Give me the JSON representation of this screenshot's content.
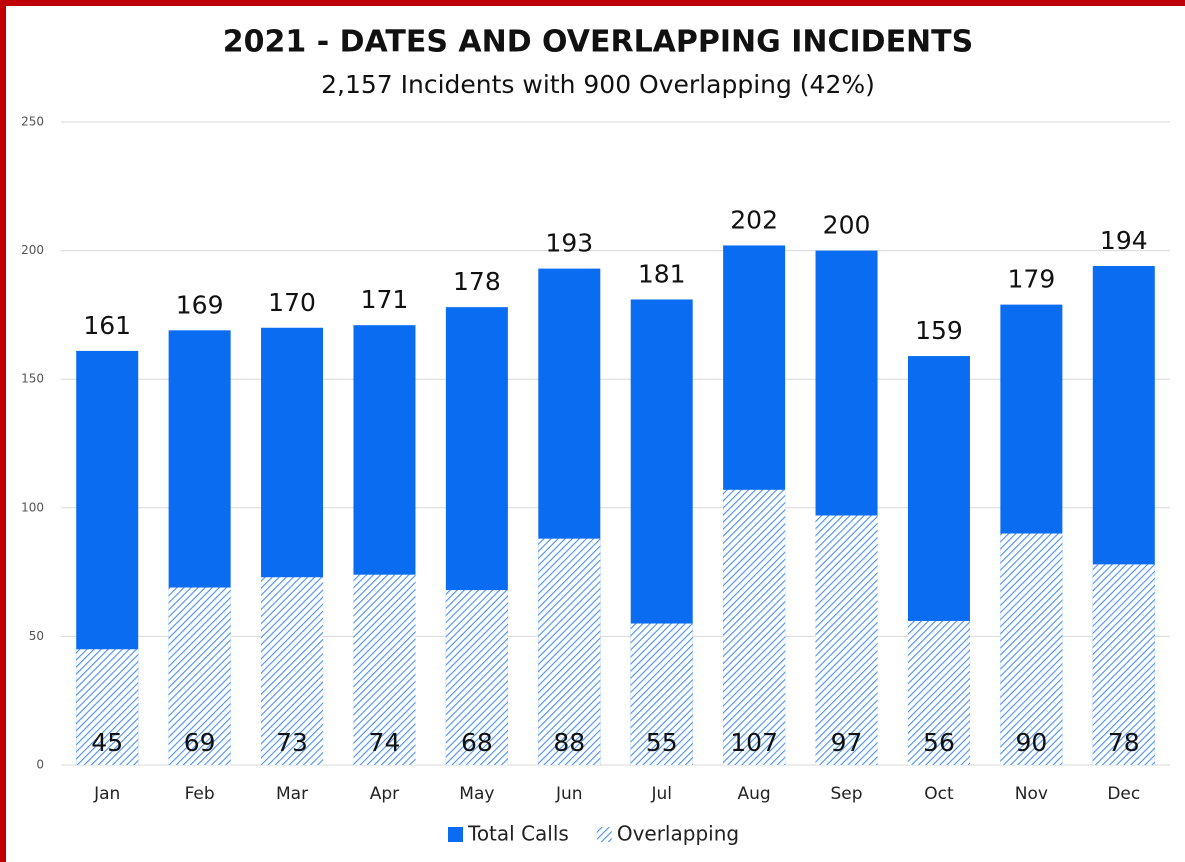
{
  "chart_data": {
    "type": "bar",
    "title": "2021 - DATES AND OVERLAPPING INCIDENTS",
    "subtitle": "2,157 Incidents with 900 Overlapping (42%)",
    "categories": [
      "Jan",
      "Feb",
      "Mar",
      "Apr",
      "May",
      "Jun",
      "Jul",
      "Aug",
      "Sep",
      "Oct",
      "Nov",
      "Dec"
    ],
    "series": [
      {
        "name": "Total Calls",
        "color": "#0a6cf0",
        "values": [
          161,
          169,
          170,
          171,
          178,
          193,
          181,
          202,
          200,
          159,
          179,
          194
        ]
      },
      {
        "name": "Overlapping",
        "color": "#0a6cf0",
        "pattern": "hatch",
        "values": [
          45,
          69,
          73,
          74,
          68,
          88,
          55,
          107,
          97,
          56,
          90,
          78
        ]
      }
    ],
    "ylim": [
      0,
      250
    ],
    "yticks": [
      0,
      50,
      100,
      150,
      200,
      250
    ],
    "grid": true,
    "legend": "bottom"
  }
}
